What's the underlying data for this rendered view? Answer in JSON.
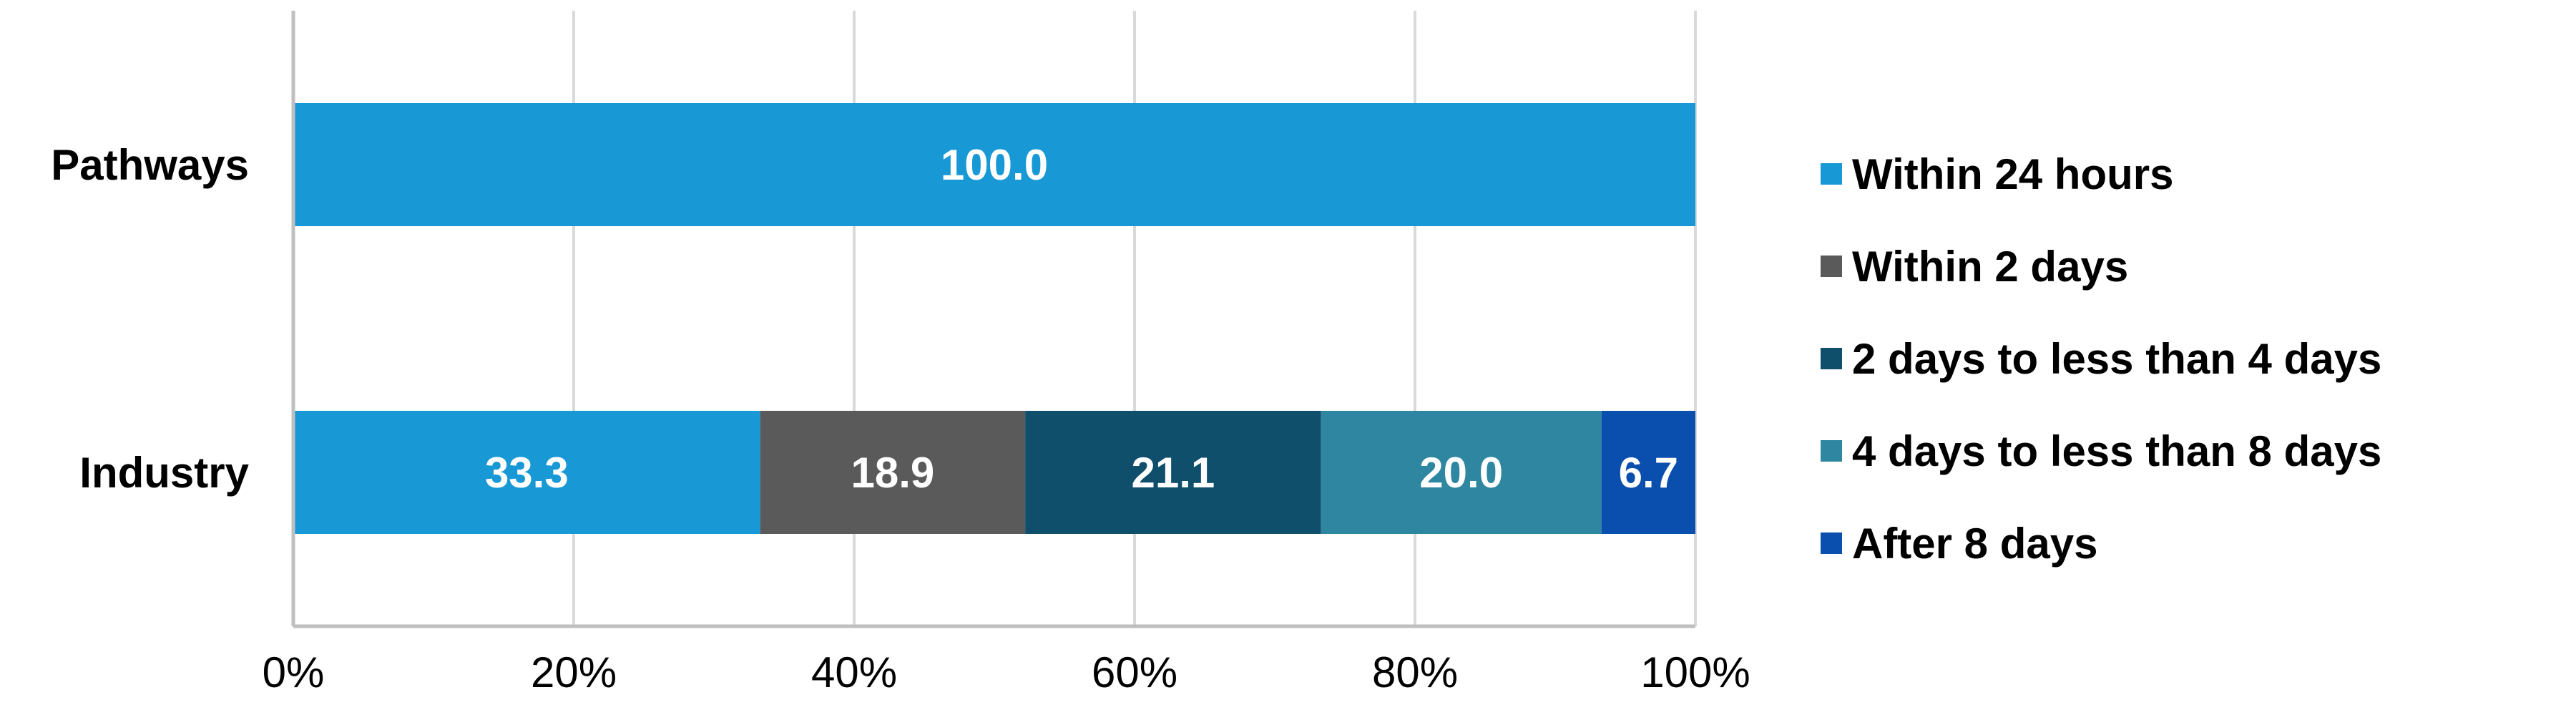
{
  "chart_data": {
    "type": "bar",
    "orientation": "horizontal",
    "stacked": true,
    "percent_stacked": true,
    "categories": [
      "Pathways",
      "Industry"
    ],
    "series": [
      {
        "name": "Within 24 hours",
        "color": "#1899d6",
        "values": [
          100.0,
          33.3
        ],
        "labels": [
          "100.0",
          "33.3"
        ]
      },
      {
        "name": "Within 2 days",
        "color": "#5a5a5a",
        "values": [
          0,
          18.9
        ],
        "labels": [
          "",
          "18.9"
        ]
      },
      {
        "name": "2 days to less than 4 days",
        "color": "#0f4f6c",
        "values": [
          0,
          21.1
        ],
        "labels": [
          "",
          "21.1"
        ]
      },
      {
        "name": "4 days to less than 8 days",
        "color": "#2e86a0",
        "values": [
          0,
          20.0
        ],
        "labels": [
          "",
          "20.0"
        ]
      },
      {
        "name": "After 8 days",
        "color": "#0a4fae",
        "values": [
          0,
          6.7
        ],
        "labels": [
          "",
          "6.7"
        ]
      }
    ],
    "x_ticks": [
      "0%",
      "20%",
      "40%",
      "60%",
      "80%",
      "100%"
    ],
    "xlim": [
      0,
      100
    ],
    "grid": true,
    "gridline_color": "#d9d9d9",
    "legend_position": "right"
  }
}
